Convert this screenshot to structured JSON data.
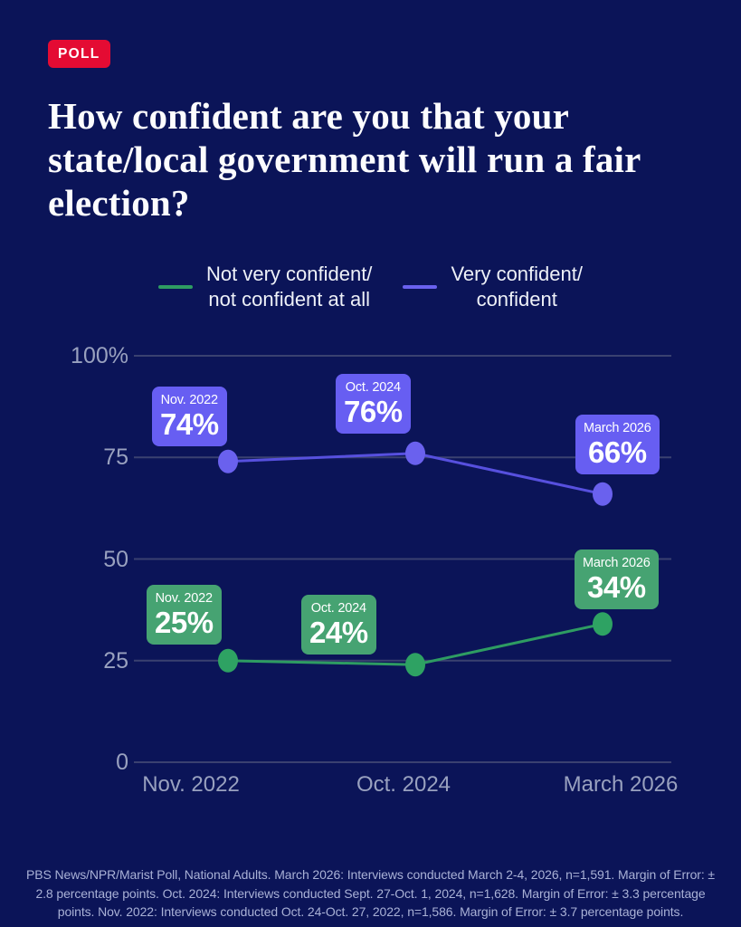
{
  "badge": {
    "label": "POLL",
    "color": "#e40b33"
  },
  "title_lines": [
    "How confident are you that your",
    "state/local government will run a fair",
    "election?"
  ],
  "legend": {
    "position": "top",
    "items": [
      {
        "series": "not-confident",
        "color": "#2e9c62",
        "lines": [
          "Not very confident/",
          "not confident at all"
        ]
      },
      {
        "series": "very-confident",
        "color": "#6a61ee",
        "lines": [
          "Very confident/",
          "confident"
        ]
      }
    ]
  },
  "chart_data": {
    "type": "line",
    "title": "How confident are you that your state/local government will run a fair election?",
    "categories": [
      "Nov. 2022",
      "Oct. 2024",
      "March 2026"
    ],
    "series": [
      {
        "key": "very-confident",
        "name": "Very confident/confident",
        "values": [
          74,
          76,
          66
        ],
        "labels": [
          "74%",
          "76%",
          "66%"
        ],
        "line_color": "#5750de",
        "dot_color": "#6a61ee",
        "box_color": "#675ef2"
      },
      {
        "key": "not-confident",
        "name": "Not very confident/not confident at all",
        "values": [
          25,
          24,
          34
        ],
        "labels": [
          "25%",
          "24%",
          "34%"
        ],
        "line_color": "#2e9c62",
        "dot_color": "#2ea263",
        "box_color": "#46a372"
      }
    ],
    "yticks": [
      {
        "label": "100%",
        "value": 100
      },
      {
        "label": "75",
        "value": 75
      },
      {
        "label": "50",
        "value": 50
      },
      {
        "label": "25",
        "value": 25
      },
      {
        "label": "0",
        "value": 0
      }
    ],
    "ylim": [
      0,
      100
    ],
    "grid": true,
    "grid_color": "#3a4170",
    "background_color": "#0b1458",
    "axis_text_color": "#99a1bf"
  },
  "footer": {
    "text": "PBS News/NPR/Marist Poll, National Adults. March 2026: Interviews conducted March 2-4, 2026, n=1,591. Margin of Error: ± 2.8 percentage points. Oct. 2024: Interviews conducted Sept. 27-Oct. 1, 2024, n=1,628. Margin of Error: ± 3.3 percentage points. Nov. 2022: Interviews conducted Oct. 24-Oct. 27, 2022, n=1,586. Margin of Error: ± 3.7 percentage points."
  }
}
